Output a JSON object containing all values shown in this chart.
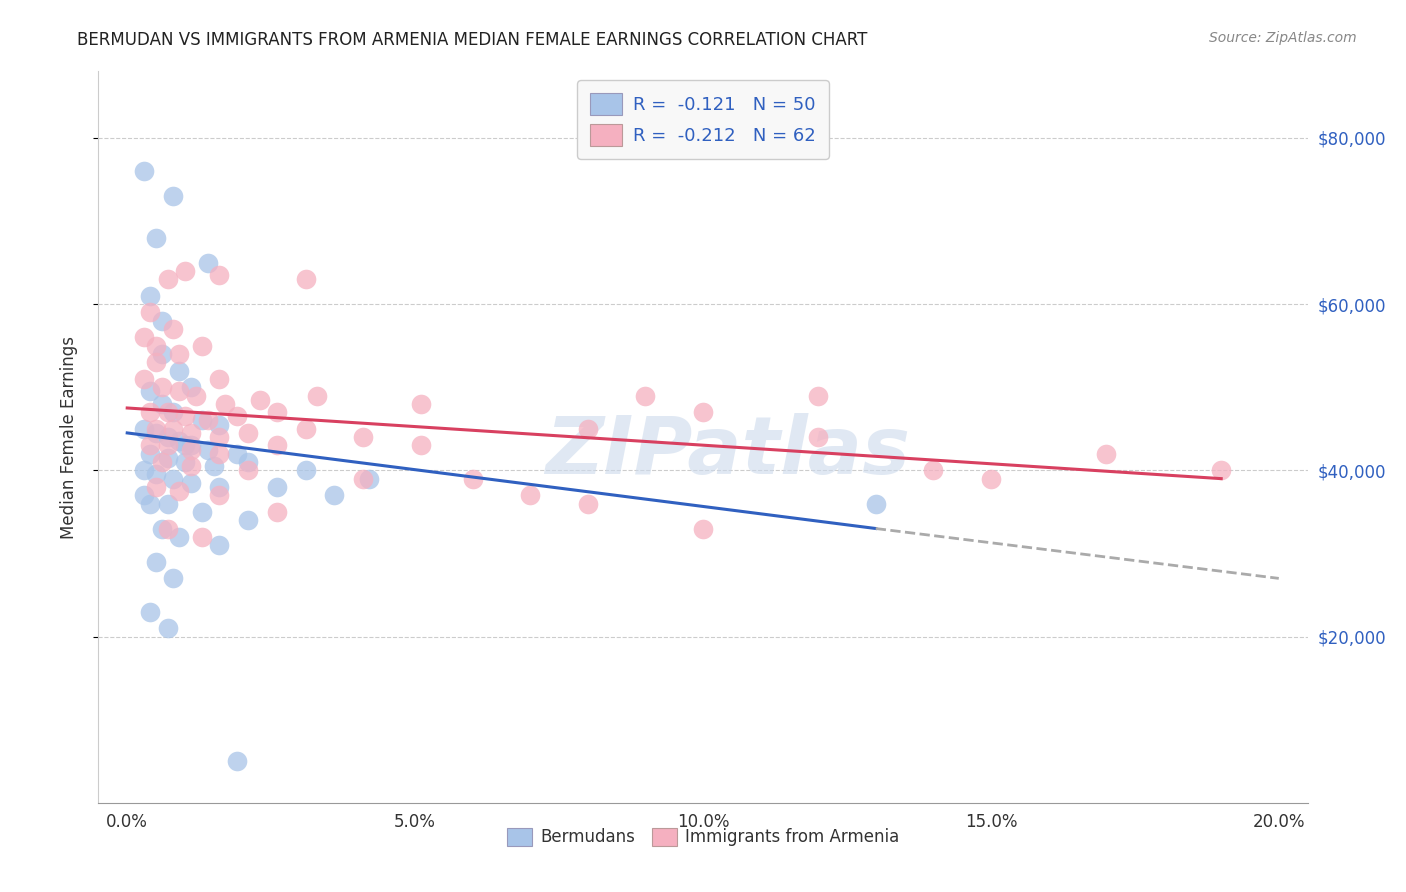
{
  "title": "BERMUDAN VS IMMIGRANTS FROM ARMENIA MEDIAN FEMALE EARNINGS CORRELATION CHART",
  "source": "Source: ZipAtlas.com",
  "ylabel": "Median Female Earnings",
  "xlabel_ticks": [
    "0.0%",
    "5.0%",
    "10.0%",
    "15.0%",
    "20.0%"
  ],
  "xlabel_vals": [
    0.0,
    5.0,
    10.0,
    15.0,
    20.0
  ],
  "ylabel_ticks": [
    "$20,000",
    "$40,000",
    "$60,000",
    "$80,000"
  ],
  "ylabel_vals": [
    20000,
    40000,
    60000,
    80000
  ],
  "xlim": [
    -0.5,
    20.5
  ],
  "ylim": [
    0,
    88000
  ],
  "bermuda_color": "#a8c4e8",
  "armenia_color": "#f5b0c0",
  "bermuda_line_color": "#3060c0",
  "armenia_line_color": "#d84060",
  "legend_text_color": "#3060c0",
  "R_bermuda": -0.121,
  "N_bermuda": 50,
  "R_armenia": -0.212,
  "N_armenia": 62,
  "watermark": "ZIPatlas",
  "title_color": "#222222",
  "right_yaxis_color": "#3060c0",
  "bermuda_scatter": [
    [
      0.3,
      76000
    ],
    [
      0.8,
      73000
    ],
    [
      0.5,
      68000
    ],
    [
      0.4,
      61000
    ],
    [
      1.4,
      65000
    ],
    [
      0.6,
      58000
    ],
    [
      0.6,
      54000
    ],
    [
      0.9,
      52000
    ],
    [
      1.1,
      50000
    ],
    [
      0.4,
      49500
    ],
    [
      0.6,
      48000
    ],
    [
      0.8,
      47000
    ],
    [
      1.3,
      46000
    ],
    [
      1.6,
      45500
    ],
    [
      0.3,
      45000
    ],
    [
      0.5,
      44500
    ],
    [
      0.7,
      44000
    ],
    [
      0.9,
      43500
    ],
    [
      1.1,
      43000
    ],
    [
      1.4,
      42500
    ],
    [
      1.0,
      43000
    ],
    [
      1.9,
      42000
    ],
    [
      0.4,
      42000
    ],
    [
      0.7,
      41500
    ],
    [
      1.0,
      41000
    ],
    [
      1.5,
      40500
    ],
    [
      2.1,
      41000
    ],
    [
      3.1,
      40000
    ],
    [
      0.3,
      40000
    ],
    [
      0.5,
      39500
    ],
    [
      0.8,
      39000
    ],
    [
      1.1,
      38500
    ],
    [
      1.6,
      38000
    ],
    [
      2.6,
      38000
    ],
    [
      3.6,
      37000
    ],
    [
      0.4,
      36000
    ],
    [
      0.7,
      36000
    ],
    [
      1.3,
      35000
    ],
    [
      2.1,
      34000
    ],
    [
      0.6,
      33000
    ],
    [
      0.9,
      32000
    ],
    [
      1.6,
      31000
    ],
    [
      0.5,
      29000
    ],
    [
      0.8,
      27000
    ],
    [
      0.4,
      23000
    ],
    [
      0.7,
      21000
    ],
    [
      0.3,
      37000
    ],
    [
      1.9,
      5000
    ],
    [
      4.2,
      39000
    ],
    [
      13.0,
      36000
    ]
  ],
  "armenia_scatter": [
    [
      0.3,
      56000
    ],
    [
      0.5,
      55000
    ],
    [
      0.7,
      63000
    ],
    [
      1.0,
      64000
    ],
    [
      1.6,
      63500
    ],
    [
      3.1,
      63000
    ],
    [
      0.4,
      59000
    ],
    [
      0.8,
      57000
    ],
    [
      1.3,
      55000
    ],
    [
      0.5,
      53000
    ],
    [
      0.9,
      54000
    ],
    [
      1.6,
      51000
    ],
    [
      0.3,
      51000
    ],
    [
      0.6,
      50000
    ],
    [
      0.9,
      49500
    ],
    [
      1.2,
      49000
    ],
    [
      1.7,
      48000
    ],
    [
      2.3,
      48500
    ],
    [
      3.3,
      49000
    ],
    [
      0.4,
      47000
    ],
    [
      0.7,
      47000
    ],
    [
      1.0,
      46500
    ],
    [
      1.4,
      46000
    ],
    [
      1.9,
      46500
    ],
    [
      2.6,
      47000
    ],
    [
      0.5,
      45000
    ],
    [
      0.8,
      45000
    ],
    [
      1.1,
      44500
    ],
    [
      1.6,
      44000
    ],
    [
      2.1,
      44500
    ],
    [
      3.1,
      45000
    ],
    [
      0.4,
      43000
    ],
    [
      0.7,
      43000
    ],
    [
      1.1,
      42500
    ],
    [
      1.6,
      42000
    ],
    [
      2.6,
      43000
    ],
    [
      4.1,
      44000
    ],
    [
      5.1,
      43000
    ],
    [
      0.6,
      41000
    ],
    [
      1.1,
      40500
    ],
    [
      2.1,
      40000
    ],
    [
      4.1,
      39000
    ],
    [
      0.5,
      38000
    ],
    [
      0.9,
      37500
    ],
    [
      1.6,
      37000
    ],
    [
      2.6,
      35000
    ],
    [
      0.7,
      33000
    ],
    [
      1.3,
      32000
    ],
    [
      5.1,
      48000
    ],
    [
      10.0,
      47000
    ],
    [
      8.0,
      45000
    ],
    [
      12.0,
      44000
    ],
    [
      7.0,
      37000
    ],
    [
      15.0,
      39000
    ],
    [
      10.0,
      33000
    ],
    [
      9.0,
      49000
    ],
    [
      12.0,
      49000
    ],
    [
      6.0,
      39000
    ],
    [
      14.0,
      40000
    ],
    [
      19.0,
      40000
    ],
    [
      17.0,
      42000
    ],
    [
      8.0,
      36000
    ]
  ]
}
